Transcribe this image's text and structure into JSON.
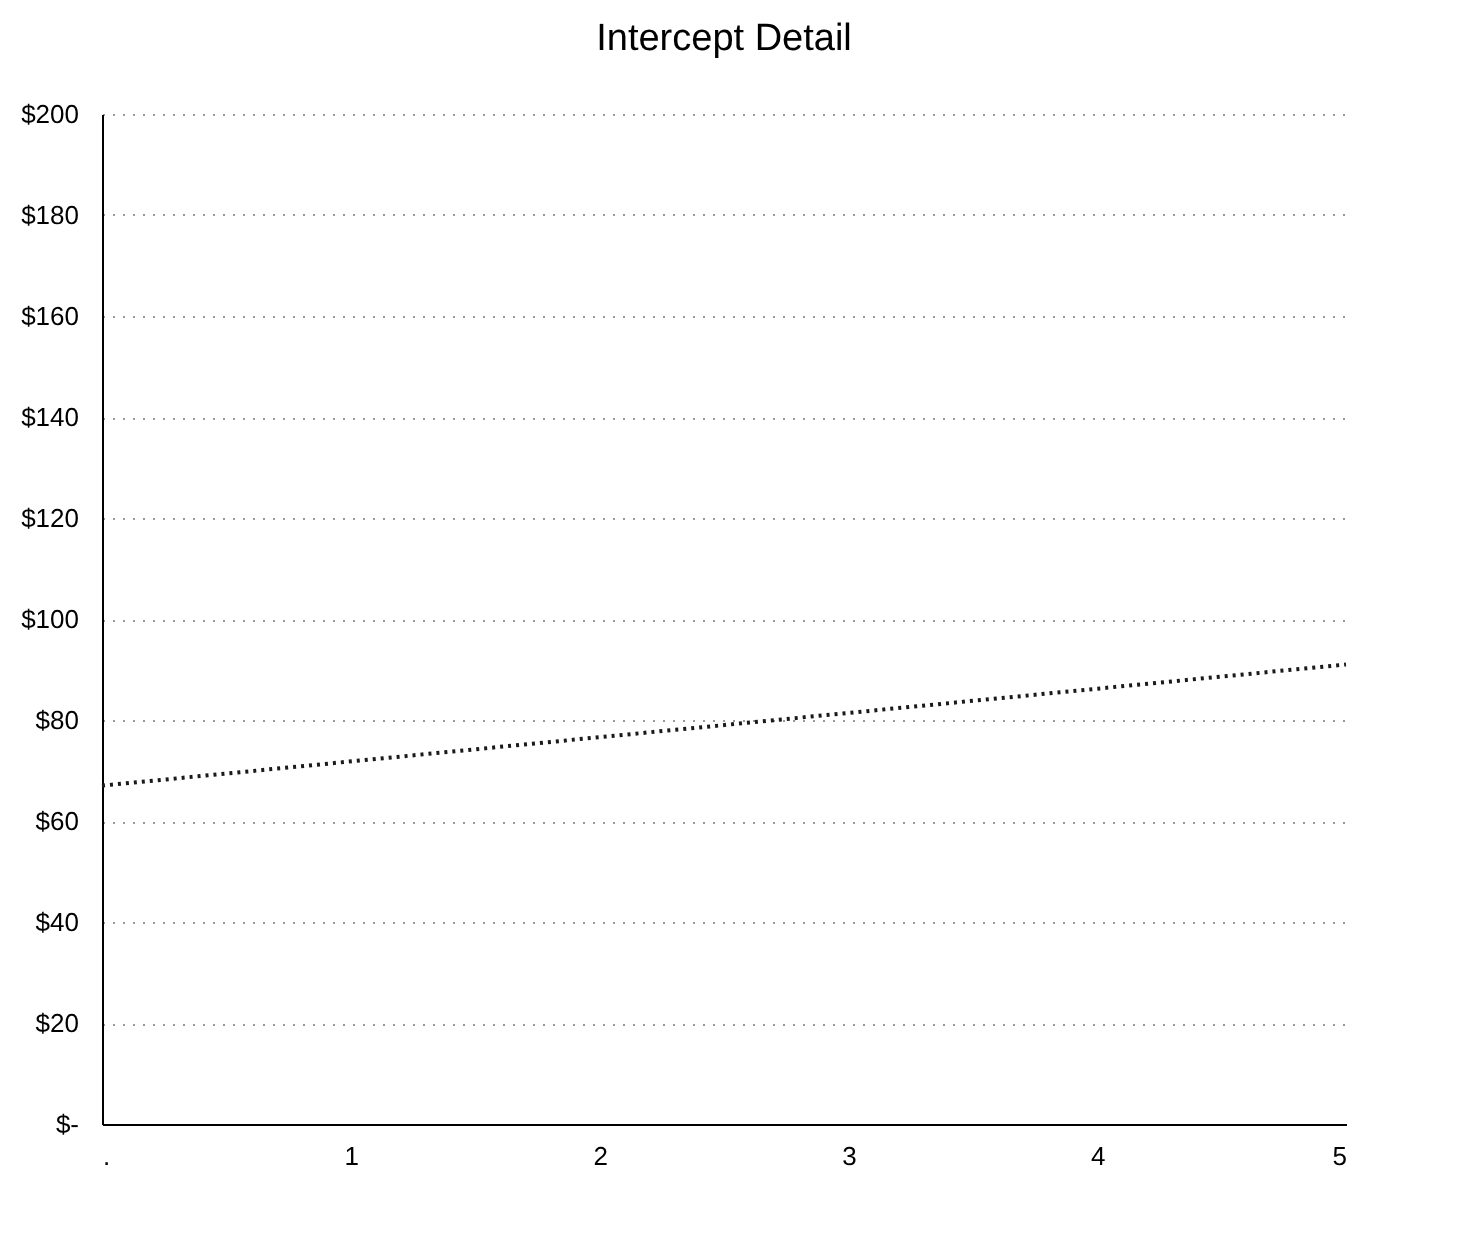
{
  "chart_data": {
    "type": "line",
    "title": "Intercept Detail",
    "x": [
      0,
      5
    ],
    "series": [
      {
        "color": "#1a1a1a",
        "values": [
          67,
          91
        ]
      }
    ],
    "line_style": "dotted",
    "marker": "none",
    "xlim": [
      0,
      5
    ],
    "xticks": [
      {
        "value": 0,
        "label": "."
      },
      1,
      2,
      3,
      4,
      5
    ],
    "ylim": [
      0,
      200
    ],
    "yticks": [
      {
        "value": 0,
        "label": "$-"
      },
      {
        "value": 20,
        "label": "$20"
      },
      {
        "value": 40,
        "label": "$40"
      },
      {
        "value": 60,
        "label": "$60"
      },
      {
        "value": 80,
        "label": "$80"
      },
      {
        "value": 100,
        "label": "$100"
      },
      {
        "value": 120,
        "label": "$120"
      },
      {
        "value": 140,
        "label": "$140"
      },
      {
        "value": 160,
        "label": "$160"
      },
      {
        "value": 180,
        "label": "$180"
      },
      {
        "value": 200,
        "label": "$200"
      }
    ],
    "grid": "y"
  }
}
